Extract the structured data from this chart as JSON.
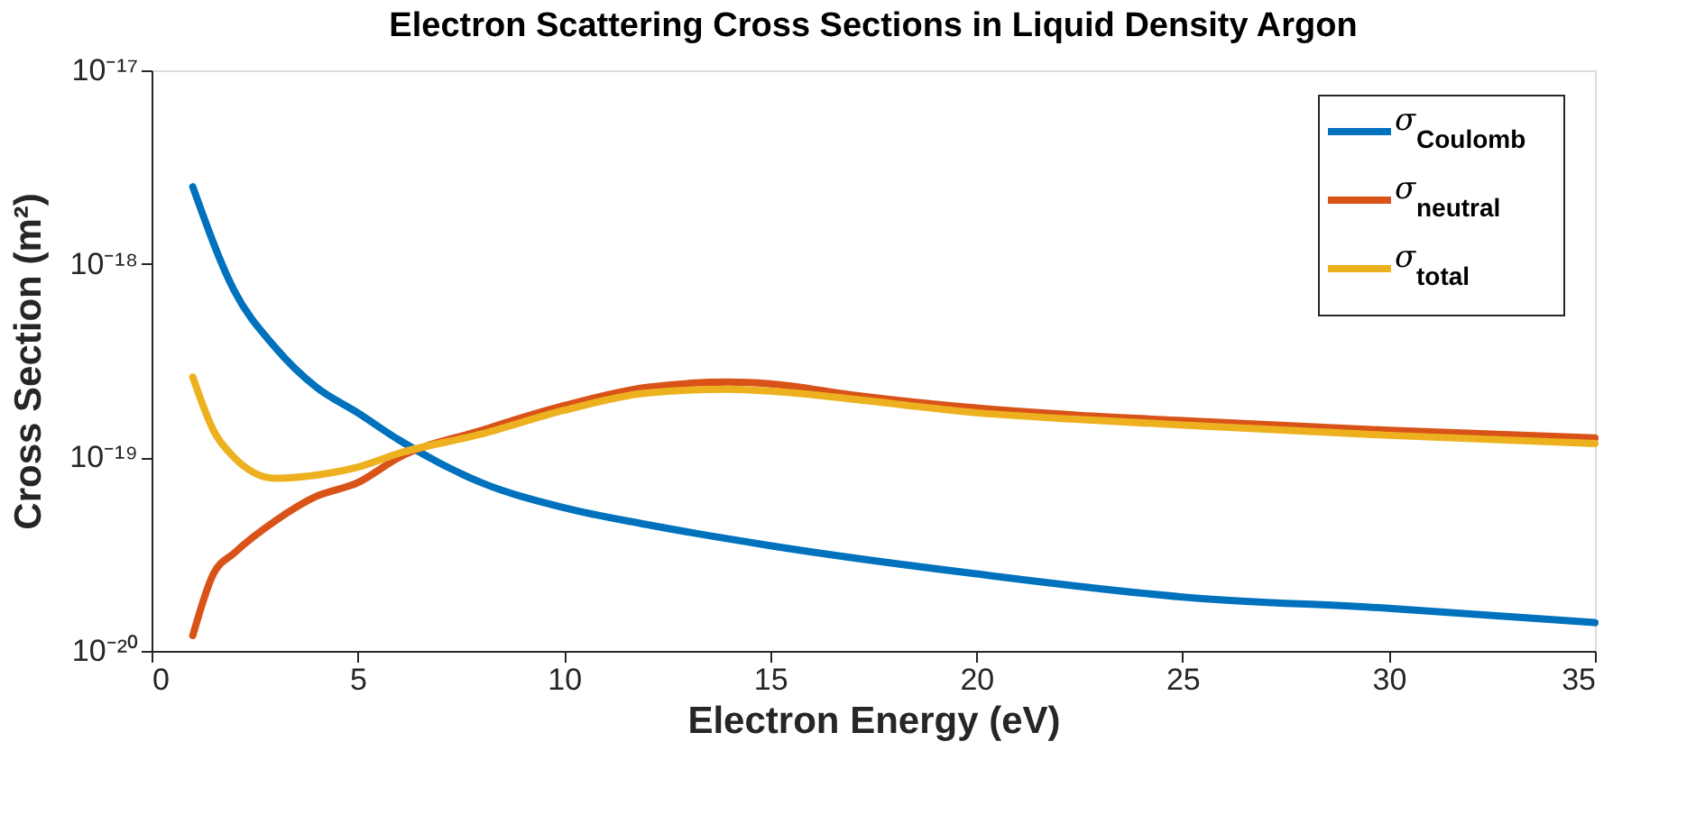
{
  "chart_data": {
    "type": "line",
    "title": "Electron Scattering Cross Sections in Liquid Density Argon",
    "xlabel": "Electron Energy (eV)",
    "ylabel": "Cross Section (m²)",
    "log": "y",
    "xlim": [
      0,
      35
    ],
    "xticks": [
      0,
      5,
      10,
      15,
      20,
      25,
      30,
      35
    ],
    "ylim": [
      1e-20,
      1e-17
    ],
    "yticks": [
      {
        "value": 1e-20,
        "label": "10⁻²⁰"
      },
      {
        "value": 1e-19,
        "label": "10⁻¹⁹"
      },
      {
        "value": 1e-18,
        "label": "10⁻¹⁸"
      },
      {
        "value": 1e-17,
        "label": "10⁻¹⁷"
      }
    ],
    "grid": false,
    "legend": "top right",
    "marker": "none",
    "line_style": "solid",
    "series": [
      {
        "name": "σ$_{Coulomb}$",
        "color": "#0072bd",
        "x": [
          1,
          2,
          3,
          4,
          5,
          6,
          8,
          10,
          12,
          15,
          20,
          25,
          30,
          35
        ],
        "values": [
          2.5e-18,
          7.3e-19,
          3.7e-19,
          2.3e-19,
          1.7e-19,
          1.23e-19,
          7.4e-20,
          5.5e-20,
          4.5e-20,
          3.5e-20,
          2.5e-20,
          1.9e-20,
          1.66e-20,
          1.4e-20
        ]
      },
      {
        "name": "σ$_{neutral}$",
        "color": "#d95319",
        "x": [
          1,
          1.5,
          2,
          3,
          4,
          5,
          6,
          8,
          10,
          12,
          14,
          15,
          17,
          20,
          22.5,
          25,
          30,
          35
        ],
        "values": [
          1.2e-20,
          2.5e-20,
          3.2e-20,
          4.7e-20,
          6.3e-20,
          7.4e-20,
          1e-19,
          1.38e-19,
          1.85e-19,
          2.3e-19,
          2.45e-19,
          2.4e-19,
          2.1e-19,
          1.8e-19,
          1.65e-19,
          1.55e-19,
          1.38e-19,
          1.26e-19
        ]
      },
      {
        "name": "σ$_{total}$",
        "color": "#edb120",
        "x": [
          1,
          1.5,
          2,
          2.5,
          3,
          4,
          5,
          6,
          8,
          10,
          12,
          14,
          15,
          17,
          20,
          22.5,
          25,
          30,
          35
        ],
        "values": [
          2.6e-19,
          1.38e-19,
          1e-19,
          8.3e-20,
          7.8e-20,
          8.1e-20,
          8.9e-20,
          1.05e-19,
          1.32e-19,
          1.75e-19,
          2.15e-19,
          2.25e-19,
          2.2e-19,
          2e-19,
          1.7e-19,
          1.57e-19,
          1.47e-19,
          1.3e-19,
          1.18e-19
        ]
      }
    ]
  }
}
